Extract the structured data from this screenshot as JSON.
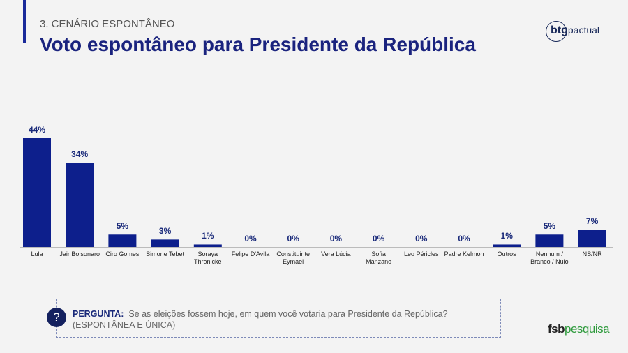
{
  "header": {
    "section": "3. CENÁRIO ESPONTÂNEO",
    "title": "Voto espontâneo para Presidente da República"
  },
  "logo": {
    "brand": "btg",
    "name": "pactual"
  },
  "chart_data": {
    "type": "bar",
    "categories": [
      "Lula",
      "Jair Bolsonaro",
      "Ciro Gomes",
      "Simone Tebet",
      "Soraya\nThronicke",
      "Felipe D'Avila",
      "Constituinte\nEymael",
      "Vera Lúcia",
      "Sofia\nManzano",
      "Leo Péricles",
      "Padre Kelmon",
      "Outros",
      "Nenhum /\nBranco / Nulo",
      "NS/NR"
    ],
    "values": [
      44,
      34,
      5,
      3,
      1,
      0,
      0,
      0,
      0,
      0,
      0,
      1,
      5,
      7
    ],
    "value_labels": [
      "44%",
      "34%",
      "5%",
      "3%",
      "1%",
      "0%",
      "0%",
      "0%",
      "0%",
      "0%",
      "0%",
      "1%",
      "5%",
      "7%"
    ],
    "color": "#0d1f8c"
  },
  "question": {
    "icon": "?",
    "label": "PERGUNTA:",
    "text": "Se as eleições fossem hoje, em quem você votaria para Presidente da República?",
    "note": "(ESPONTÂNEA E ÚNICA)"
  },
  "footer": {
    "brand": "fsb",
    "name": "pesquisa"
  }
}
